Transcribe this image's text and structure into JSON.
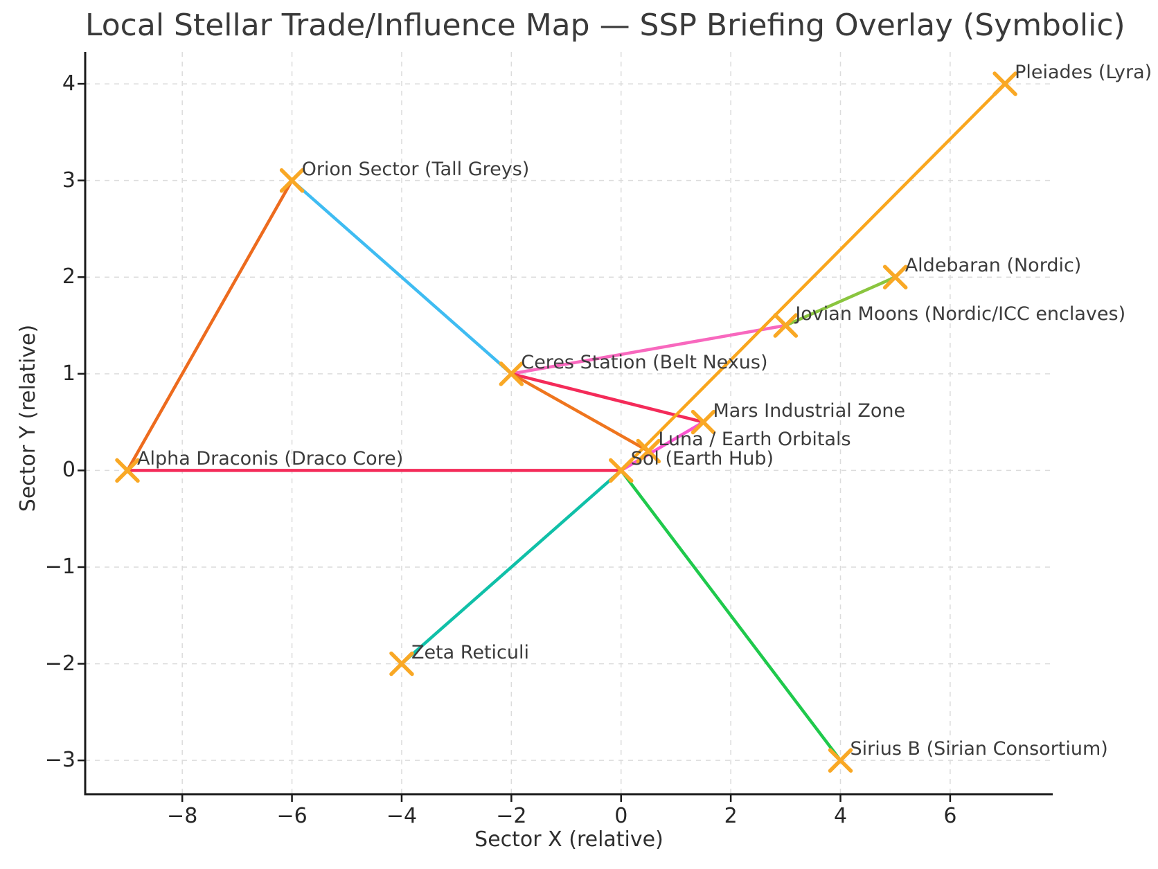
{
  "chart_data": {
    "type": "scatter",
    "title": "Local Stellar Trade/Influence Map — SSP Briefing Overlay (Symbolic)",
    "xlabel": "Sector X (relative)",
    "ylabel": "Sector Y (relative)",
    "xlim": [
      -9.77,
      7.87
    ],
    "ylim": [
      -3.35,
      4.33
    ],
    "x_ticks": [
      -8,
      -6,
      -4,
      -2,
      0,
      2,
      4,
      6
    ],
    "y_ticks": [
      -3,
      -2,
      -1,
      0,
      1,
      2,
      3,
      4
    ],
    "grid": true,
    "legend": "none",
    "marker": {
      "shape": "x",
      "color": "#F9A825",
      "half_size": 15,
      "stroke_width": 5.5
    },
    "nodes": [
      {
        "id": "sol",
        "label": "Sol (Earth Hub)",
        "x": 0,
        "y": 0
      },
      {
        "id": "luna",
        "label": "Luna / Earth Orbitals",
        "x": 0.5,
        "y": 0.2
      },
      {
        "id": "mars",
        "label": "Mars Industrial Zone",
        "x": 1.5,
        "y": 0.5
      },
      {
        "id": "ceres",
        "label": "Ceres Station (Belt Nexus)",
        "x": -2,
        "y": 1
      },
      {
        "id": "jovian",
        "label": "Jovian Moons (Nordic/ICC enclaves)",
        "x": 3,
        "y": 1.5
      },
      {
        "id": "zeta",
        "label": "Zeta Reticuli",
        "x": -4,
        "y": -2
      },
      {
        "id": "orion",
        "label": "Orion Sector (Tall Greys)",
        "x": -6,
        "y": 3
      },
      {
        "id": "sirius",
        "label": "Sirius B (Sirian Consortium)",
        "x": 4,
        "y": -3
      },
      {
        "id": "pleiades",
        "label": "Pleiades (Lyra)",
        "x": 7,
        "y": 4
      },
      {
        "id": "aldebaran",
        "label": "Aldebaran (Nordic)",
        "x": 5,
        "y": 2
      },
      {
        "id": "alpha_draconis",
        "label": "Alpha Draconis (Draco Core)",
        "x": -9,
        "y": 0
      }
    ],
    "edges": [
      {
        "from": "alpha_draconis",
        "to": "orion",
        "color": "#ED6B1E"
      },
      {
        "from": "orion",
        "to": "ceres",
        "color": "#3FBCF2"
      },
      {
        "from": "ceres",
        "to": "jovian",
        "color": "#F868BE"
      },
      {
        "from": "jovian",
        "to": "aldebaran",
        "color": "#8AC53F"
      },
      {
        "from": "ceres",
        "to": "mars",
        "color": "#F42B59"
      },
      {
        "from": "ceres",
        "to": "luna",
        "color": "#EF751E"
      },
      {
        "from": "alpha_draconis",
        "to": "sol",
        "color": "#F42B59"
      },
      {
        "from": "sol",
        "to": "pleiades",
        "color": "#F9A61D"
      },
      {
        "from": "sol",
        "to": "zeta",
        "color": "#10C0A8"
      },
      {
        "from": "sol",
        "to": "sirius",
        "color": "#1FC94C"
      },
      {
        "from": "sol",
        "to": "mars",
        "color": "#FB54D0"
      }
    ]
  },
  "colors": {
    "background": "#FFFFFF",
    "grid": "#DCDCDC",
    "spine": "#1A1A1A",
    "tick_mark": "#1A1A1A",
    "title_text": "#3A3A3A",
    "axis_label_text": "#2E2E2E",
    "tick_text": "#262626",
    "annotation_text": "#3C3C3C"
  }
}
